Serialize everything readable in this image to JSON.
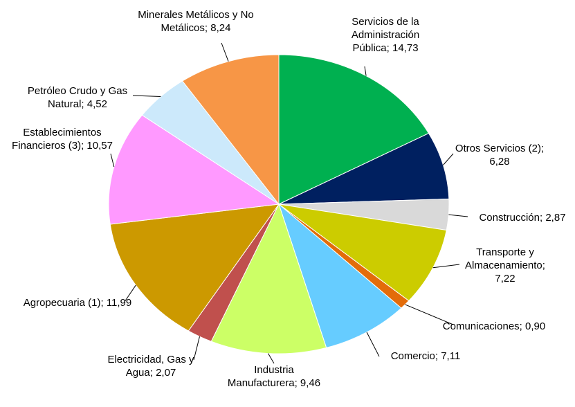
{
  "chart_data": {
    "type": "pie",
    "categories": [
      "Servicios de la Administración Pública",
      "Otros Servicios (2)",
      "Construcción",
      "Transporte y Almacenamiento",
      "Comunicaciones",
      "Comercio",
      "Industria Manufacturera",
      "Electricidad, Gas y Agua",
      "Agropecuaria (1)",
      "Establecimientos Financieros (3)",
      "Petróleo Crudo y Gas Natural",
      "Minerales Metálicos y No Metálicos"
    ],
    "values": [
      14.73,
      6.28,
      2.87,
      7.22,
      0.9,
      7.11,
      9.46,
      2.07,
      11.99,
      10.57,
      4.52,
      8.24
    ],
    "value_labels": [
      "14,73",
      "6,28",
      "2,87",
      "7,22",
      "0,90",
      "7,11",
      "9,46",
      "2,07",
      "11,99",
      "10,57",
      "4,52",
      "8,24"
    ],
    "label_separator": ";",
    "colors": [
      "#00b050",
      "#002060",
      "#d9d9d9",
      "#cccc00",
      "#e36c0a",
      "#66ccff",
      "#ccff66",
      "#c0504d",
      "#cc9900",
      "#ff99ff",
      "#cce9fb",
      "#f79646"
    ]
  }
}
